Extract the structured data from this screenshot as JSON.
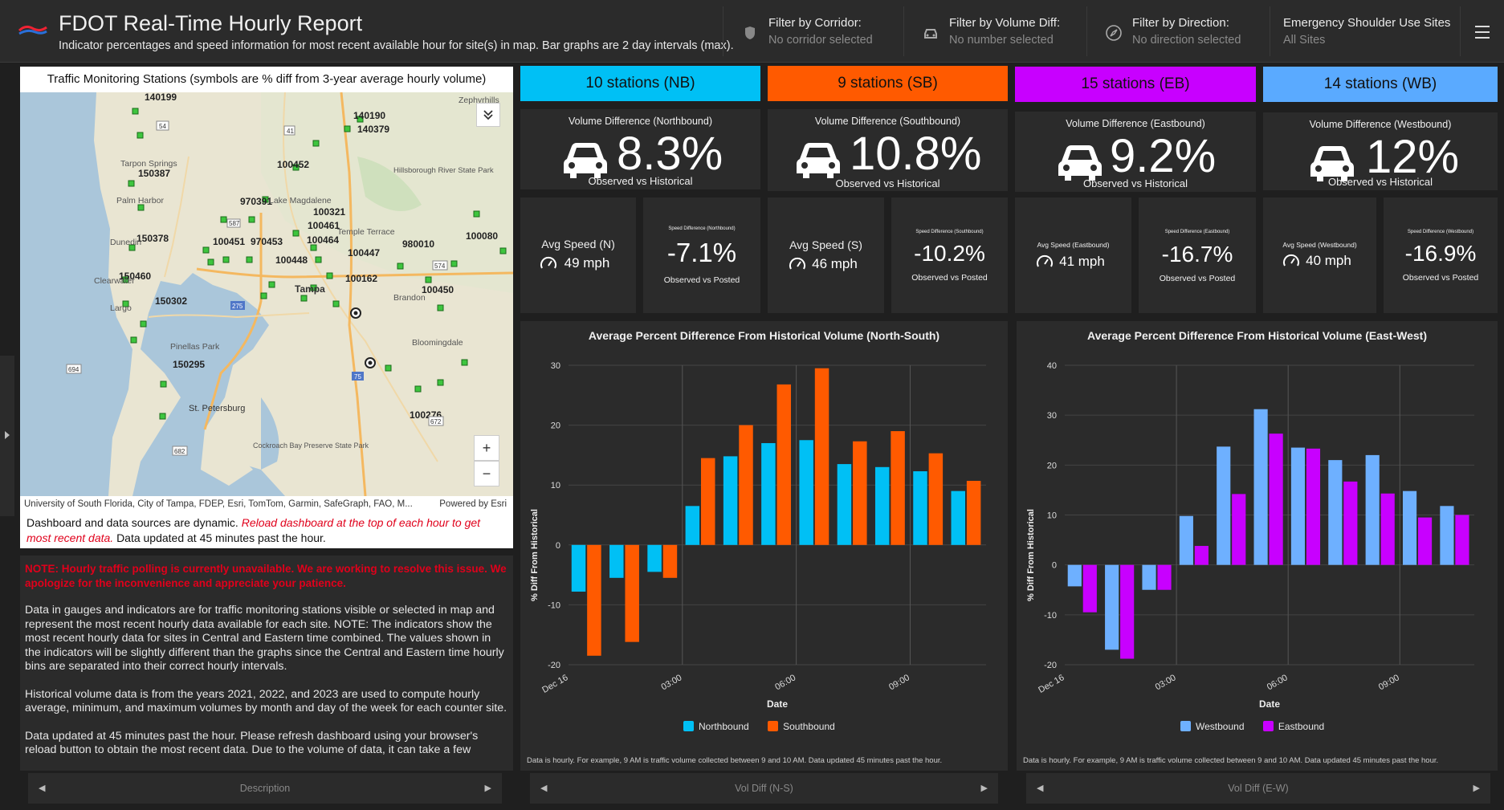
{
  "header": {
    "title": "FDOT Real-Time Hourly Report",
    "subtitle": "Indicator percentages and speed information for most recent available hour for site(s) in map. Bar graphs are 2 day intervals (max).",
    "filters": [
      {
        "label": "Filter by Corridor:",
        "value": "No corridor selected",
        "icon": "shield-icon"
      },
      {
        "label": "Filter by Volume Diff:",
        "value": "No number selected",
        "icon": "car-icon"
      },
      {
        "label": "Filter by Direction:",
        "value": "No direction selected",
        "icon": "compass-icon"
      },
      {
        "label": "Emergency Shoulder Use Sites",
        "value": "All Sites",
        "icon": ""
      }
    ]
  },
  "map": {
    "title": "Traffic Monitoring Stations (symbols are % diff from 3-year average hourly volume)",
    "attribution": "University of South Florida, City of Tampa, FDEP, Esri, TomTom, Garmin, SafeGraph, FAO, M...",
    "powered": "Powered by Esri",
    "note_plain": "Dashboard and data sources are dynamic.",
    "note_red": "Reload dashboard at the top of each hour to get most recent data.",
    "note_end": "Data updated at 45 minutes past the hour.",
    "zoom_in": "+",
    "zoom_out": "−",
    "station_labels": [
      "140199",
      "140190",
      "140379",
      "150387",
      "100452",
      "970391",
      "100321",
      "100461",
      "150378",
      "100451",
      "970453",
      "100464",
      "100447",
      "980010",
      "100080",
      "100448",
      "150460",
      "100162",
      "100450",
      "150302",
      "150295",
      "100276"
    ],
    "place_labels": [
      "Zephyrhills",
      "Tarpon Springs",
      "Palm Harbor",
      "Hillsborough River State Park",
      "Lake Magdalene",
      "Temple Terrace",
      "Dunedin",
      "Clearwater",
      "Tampa",
      "Brandon",
      "Largo",
      "Bloomingdale",
      "Pinellas Park",
      "St. Petersburg",
      "Cockroach Bay Preserve State Park"
    ],
    "road_labels": [
      "54",
      "41",
      "587",
      "574",
      "275",
      "694",
      "75",
      "672",
      "682"
    ]
  },
  "description": {
    "warning": "NOTE: Hourly traffic polling is currently unavailable.  We are working to resolve this issue.  We apologize for the inconvenience and appreciate your patience.",
    "p1": "Data in gauges and indicators are for traffic monitoring stations visible or selected in map and represent the most recent hourly data available for each site.  NOTE: The indicators show the most recent hourly data for sites in Central and Eastern time combined.  The values shown in the indicators will be slightly different than the graphs since the Central and Eastern time hourly bins are separated into their correct hourly intervals.",
    "p2": "Historical volume data is from the years 2021, 2022, and 2023 are used to compute hourly average, minimum, and maximum volumes by month and day of the week for each counter site.",
    "p3": "Data updated at 45 minutes past the hour. Please refresh dashboard using your browser's reload button to obtain the most recent data. Due to the volume of data, it can take a few"
  },
  "footer_tabs": [
    "Description",
    "Vol Diff (N-S)",
    "Vol Diff (E-W)"
  ],
  "directions": [
    {
      "head": "10 stations (NB)",
      "color": "#00c0f5",
      "vol_title": "Volume Difference (Northbound)",
      "vol_value": "8.3%",
      "vol_sub": "Observed vs Historical",
      "spd_title": "Avg Speed (N)",
      "spd_value": "49 mph",
      "diff_title": "Speed Difference (Northbound)",
      "diff_value": "-7.1%",
      "diff_sub": "Observed vs Posted"
    },
    {
      "head": "9 stations (SB)",
      "color": "#ff5a00",
      "vol_title": "Volume Difference (Southbound)",
      "vol_value": "10.8%",
      "vol_sub": "Observed vs Historical",
      "spd_title": "Avg Speed (S)",
      "spd_value": "46 mph",
      "diff_title": "Speed Difference (Southbound)",
      "diff_value": "-10.2%",
      "diff_sub": "Observed vs Posted"
    },
    {
      "head": "15 stations (EB)",
      "color": "#c800ff",
      "vol_title": "Volume Difference (Eastbound)",
      "vol_value": "9.2%",
      "vol_sub": "Observed vs Historical",
      "spd_title": "Avg Speed (Eastbound)",
      "spd_value": "41 mph",
      "diff_title": "Speed Difference (Eastbound)",
      "diff_value": "-16.7%",
      "diff_sub": "Observed vs Posted"
    },
    {
      "head": "14 stations (WB)",
      "color": "#5aaaff",
      "vol_title": "Volume Difference (Westbound)",
      "vol_value": "12%",
      "vol_sub": "Observed vs Historical",
      "spd_title": "Avg Speed (Westbound)",
      "spd_value": "40 mph",
      "diff_title": "Speed Difference (Westbound)",
      "diff_value": "-16.9%",
      "diff_sub": "Observed vs Posted"
    }
  ],
  "chart_note": "Data is hourly.  For example, 9 AM is traffic volume collected between 9 and 10 AM. Data updated 45 minutes past the hour.",
  "chart_data": [
    {
      "type": "bar",
      "title": "Average Percent Difference From Historical Volume (North-South)",
      "xlabel": "Date",
      "ylabel": "% Diff From Historical",
      "ylim": [
        -20,
        30
      ],
      "yticks": [
        30,
        20,
        10,
        0,
        -10,
        -20
      ],
      "xtick_labels": [
        "Dec 16",
        "03:00",
        "06:00",
        "09:00"
      ],
      "xtick_after_bin": [
        0,
        3,
        6,
        9
      ],
      "series": [
        {
          "name": "Northbound",
          "color": "#00c0f5",
          "values": [
            -7.8,
            -5.5,
            -4.5,
            6.5,
            14.8,
            17,
            17.5,
            13.5,
            13,
            12.3,
            9
          ]
        },
        {
          "name": "Southbound",
          "color": "#ff5a00",
          "values": [
            -18.5,
            -16.2,
            -5.5,
            14.5,
            20,
            26.8,
            29.5,
            17.3,
            19,
            15.3,
            10.7
          ]
        }
      ]
    },
    {
      "type": "bar",
      "title": "Average Percent Difference From Historical Volume (East-West)",
      "xlabel": "Date",
      "ylabel": "% Diff From Historical",
      "ylim": [
        -20,
        40
      ],
      "yticks": [
        40,
        30,
        20,
        10,
        0,
        -10,
        -20
      ],
      "xtick_labels": [
        "Dec 16",
        "03:00",
        "06:00",
        "09:00"
      ],
      "xtick_after_bin": [
        0,
        3,
        6,
        9
      ],
      "series": [
        {
          "name": "Westbound",
          "color": "#6eb0ff",
          "values": [
            -4.3,
            -17,
            -5,
            9.8,
            23.7,
            31.2,
            23.5,
            21,
            22,
            14.8,
            11.8
          ]
        },
        {
          "name": "Eastbound",
          "color": "#c800ff",
          "values": [
            -9.5,
            -18.8,
            -5,
            3.8,
            14.2,
            26.3,
            23.3,
            16.7,
            14.3,
            9.5,
            10
          ]
        }
      ]
    }
  ]
}
